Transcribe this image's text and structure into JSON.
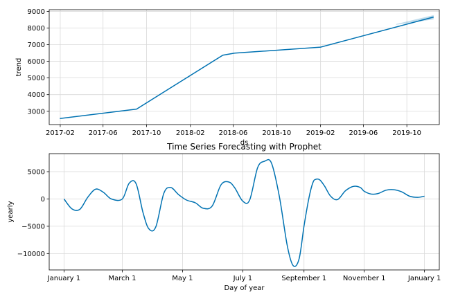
{
  "colors": {
    "line": "#0072B2",
    "band": "#0072B2",
    "grid": "#d9d9d9",
    "axis": "#000000"
  },
  "chart_data": [
    {
      "type": "line",
      "title": "",
      "xlabel": "ds",
      "ylabel": "trend",
      "x_axis_type": "date",
      "xlim": [
        "2017-01-01",
        "2019-12-31"
      ],
      "ylim": [
        2200,
        9100
      ],
      "x_ticks": [
        "2017-02",
        "2017-06",
        "2017-10",
        "2018-02",
        "2018-06",
        "2018-10",
        "2019-02",
        "2019-06",
        "2019-10"
      ],
      "y_ticks": [
        3000,
        4000,
        5000,
        6000,
        7000,
        8000,
        9000
      ],
      "grid": true,
      "series": [
        {
          "x": [
            "2017-01-31",
            "2017-09-03",
            "2018-05-03",
            "2018-06-05",
            "2019-02-01",
            "2019-12-15"
          ],
          "y": [
            2560,
            3130,
            6370,
            6490,
            6850,
            8660
          ]
        }
      ],
      "uncertainty_band": {
        "x": [
          "2019-09-01",
          "2019-12-15"
        ],
        "lower": [
          8200,
          8520
        ],
        "upper": [
          8240,
          8770
        ]
      }
    },
    {
      "type": "line",
      "title": "Time Series Forecasting with Prophet",
      "xlabel": "Day of year",
      "ylabel": "yearly",
      "xlim": [
        -15,
        380
      ],
      "ylim": [
        -13000,
        8300
      ],
      "x_ticks": [
        0,
        59,
        120,
        181,
        243,
        304,
        365
      ],
      "x_tick_labels": [
        "January 1",
        "March 1",
        "May 1",
        "July 1",
        "September 1",
        "November 1",
        "January 1"
      ],
      "y_ticks": [
        -10000,
        -5000,
        0,
        5000
      ],
      "y_tick_labels": [
        "−10000",
        "−5000",
        "0",
        "5000"
      ],
      "grid": true,
      "series": [
        {
          "x": [
            0,
            8,
            16,
            24,
            32,
            40,
            48,
            59,
            66,
            73,
            80,
            86,
            93,
            101,
            108,
            116,
            124,
            133,
            141,
            150,
            159,
            167,
            173,
            181,
            188,
            196,
            203,
            210,
            218,
            226,
            232,
            238,
            243,
            248,
            252,
            255,
            259,
            264,
            270,
            277,
            285,
            293,
            300,
            304,
            311,
            318,
            326,
            334,
            342,
            350,
            358,
            365
          ],
          "y": [
            0,
            -1800,
            -1900,
            300,
            1800,
            1200,
            0,
            0,
            2900,
            2800,
            -2500,
            -5500,
            -5100,
            1000,
            2100,
            800,
            -200,
            -700,
            -1700,
            -1300,
            2600,
            3100,
            2000,
            -400,
            -200,
            5700,
            6900,
            6600,
            500,
            -8500,
            -12200,
            -11000,
            -5000,
            200,
            3000,
            3600,
            3500,
            2300,
            500,
            -100,
            1500,
            2300,
            2100,
            1400,
            900,
            1000,
            1600,
            1700,
            1300,
            500,
            300,
            500
          ]
        }
      ]
    }
  ]
}
